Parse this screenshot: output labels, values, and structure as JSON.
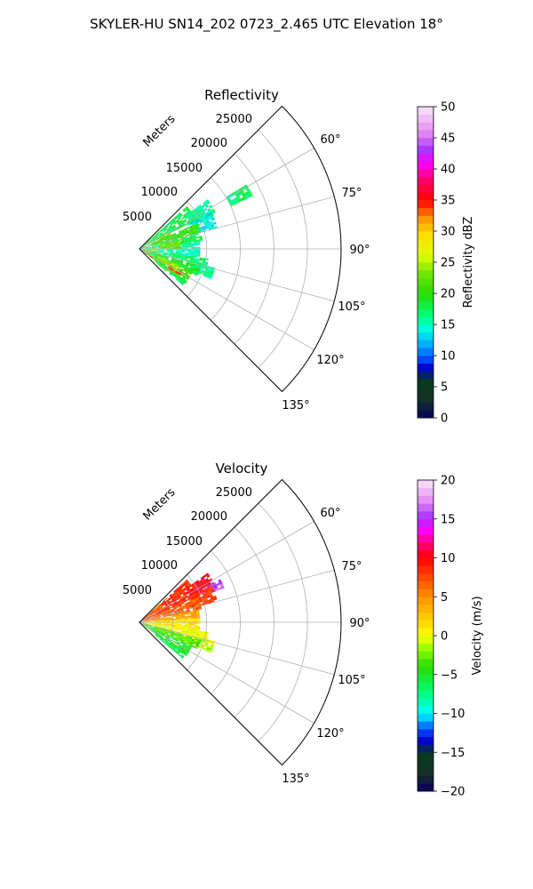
{
  "figure": {
    "title": "SKYLER-HU  SN14_202  0723_2.465 UTC Elevation 18°"
  },
  "range_label": "Meters",
  "chart_data": [
    {
      "type": "heatmap",
      "title": "Reflectivity",
      "projection": "polar-sector",
      "azimuth_range_deg": [
        45,
        135
      ],
      "range_limit_m": [
        0,
        30000
      ],
      "range_ticks": [
        5000,
        10000,
        15000,
        20000,
        25000
      ],
      "range_tick_labels": [
        "5000",
        "10000",
        "15000",
        "20000",
        "25000"
      ],
      "azimuth_ticks": [
        60,
        75,
        90,
        105,
        120,
        135
      ],
      "azimuth_tick_labels": [
        "60°",
        "75°",
        "90°",
        "105°",
        "120°",
        "135°"
      ],
      "grid": true,
      "colorbar": {
        "label": "Reflectivity dBZ",
        "range": [
          0,
          50
        ],
        "ticks": [
          0,
          5,
          10,
          15,
          20,
          25,
          30,
          35,
          40,
          45,
          50
        ],
        "tick_labels": [
          "0",
          "5",
          "10",
          "15",
          "20",
          "25",
          "30",
          "35",
          "40",
          "45",
          "50"
        ]
      },
      "echoes": [
        {
          "az": [
            48,
            63
          ],
          "r": [
            500,
            9500
          ],
          "v": 18
        },
        {
          "az": [
            54,
            66
          ],
          "r": [
            8500,
            12500
          ],
          "v": 16
        },
        {
          "az": [
            63,
            75
          ],
          "r": [
            8000,
            12000
          ],
          "v": 14
        },
        {
          "az": [
            59,
            65
          ],
          "r": [
            15000,
            18500
          ],
          "v": 17
        },
        {
          "az": [
            66,
            75
          ],
          "r": [
            500,
            9500
          ],
          "v": 20
        },
        {
          "az": [
            75,
            82
          ],
          "r": [
            500,
            9500
          ],
          "v": 18
        },
        {
          "az": [
            82,
            90
          ],
          "r": [
            500,
            9000
          ],
          "v": 16
        },
        {
          "az": [
            90,
            98
          ],
          "r": [
            500,
            9000
          ],
          "v": 15
        },
        {
          "az": [
            98,
            106
          ],
          "r": [
            500,
            10000
          ],
          "v": 17
        },
        {
          "az": [
            104,
            112
          ],
          "r": [
            8000,
            11500
          ],
          "v": 16
        },
        {
          "az": [
            106,
            115
          ],
          "r": [
            500,
            9500
          ],
          "v": 19
        },
        {
          "az": [
            115,
            126
          ],
          "r": [
            500,
            8500
          ],
          "v": 21
        },
        {
          "az": [
            118,
            124
          ],
          "r": [
            5000,
            7000
          ],
          "v": 34
        },
        {
          "az": [
            124,
            130
          ],
          "r": [
            3000,
            8000
          ],
          "v": 18
        },
        {
          "az": [
            78,
            90
          ],
          "r": [
            3000,
            6000
          ],
          "v": 23
        },
        {
          "az": [
            112,
            120
          ],
          "r": [
            3000,
            6500
          ],
          "v": 24
        },
        {
          "az": [
            60,
            70
          ],
          "r": [
            2000,
            5000
          ],
          "v": 22
        },
        {
          "az": [
            88,
            96
          ],
          "r": [
            500,
            2500
          ],
          "v": 30
        },
        {
          "az": [
            120,
            126
          ],
          "r": [
            500,
            2000
          ],
          "v": 34
        }
      ]
    },
    {
      "type": "heatmap",
      "title": "Velocity",
      "projection": "polar-sector",
      "azimuth_range_deg": [
        45,
        135
      ],
      "range_limit_m": [
        0,
        30000
      ],
      "range_ticks": [
        5000,
        10000,
        15000,
        20000,
        25000
      ],
      "range_tick_labels": [
        "5000",
        "10000",
        "15000",
        "20000",
        "25000"
      ],
      "azimuth_ticks": [
        60,
        75,
        90,
        105,
        120,
        135
      ],
      "azimuth_tick_labels": [
        "60°",
        "75°",
        "90°",
        "105°",
        "120°",
        "135°"
      ],
      "grid": true,
      "colorbar": {
        "label": "Velocity (m/s)",
        "range": [
          -20,
          20
        ],
        "ticks": [
          -20,
          -15,
          -10,
          -5,
          0,
          5,
          10,
          15,
          20
        ],
        "tick_labels": [
          "−20",
          "−15",
          "−10",
          "−5",
          "0",
          "5",
          "10",
          "15",
          "20"
        ]
      },
      "echoes": [
        {
          "az": [
            48,
            66
          ],
          "r": [
            500,
            9500
          ],
          "v": 9
        },
        {
          "az": [
            54,
            66
          ],
          "r": [
            8500,
            12500
          ],
          "v": 10
        },
        {
          "az": [
            62,
            68
          ],
          "r": [
            10500,
            13500
          ],
          "v": 16
        },
        {
          "az": [
            63,
            75
          ],
          "r": [
            8000,
            12000
          ],
          "v": 8
        },
        {
          "az": [
            66,
            78
          ],
          "r": [
            500,
            9500
          ],
          "v": 7
        },
        {
          "az": [
            78,
            86
          ],
          "r": [
            500,
            9000
          ],
          "v": 4
        },
        {
          "az": [
            86,
            98
          ],
          "r": [
            500,
            9000
          ],
          "v": 1
        },
        {
          "az": [
            98,
            106
          ],
          "r": [
            500,
            10000
          ],
          "v": 0
        },
        {
          "az": [
            104,
            112
          ],
          "r": [
            8000,
            11500
          ],
          "v": -1
        },
        {
          "az": [
            106,
            114
          ],
          "r": [
            500,
            9500
          ],
          "v": -3
        },
        {
          "az": [
            114,
            126
          ],
          "r": [
            500,
            8500
          ],
          "v": -5
        },
        {
          "az": [
            124,
            130
          ],
          "r": [
            3000,
            8000
          ],
          "v": -6
        },
        {
          "az": [
            48,
            58
          ],
          "r": [
            500,
            4000
          ],
          "v": 6
        }
      ]
    }
  ]
}
